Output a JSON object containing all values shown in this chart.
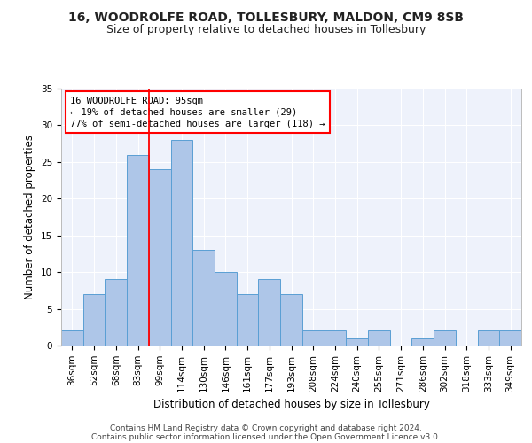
{
  "title_line1": "16, WOODROLFE ROAD, TOLLESBURY, MALDON, CM9 8SB",
  "title_line2": "Size of property relative to detached houses in Tollesbury",
  "xlabel": "Distribution of detached houses by size in Tollesbury",
  "ylabel": "Number of detached properties",
  "bar_labels": [
    "36sqm",
    "52sqm",
    "68sqm",
    "83sqm",
    "99sqm",
    "114sqm",
    "130sqm",
    "146sqm",
    "161sqm",
    "177sqm",
    "193sqm",
    "208sqm",
    "224sqm",
    "240sqm",
    "255sqm",
    "271sqm",
    "286sqm",
    "302sqm",
    "318sqm",
    "333sqm",
    "349sqm"
  ],
  "bar_values": [
    2,
    7,
    9,
    26,
    24,
    28,
    13,
    10,
    7,
    9,
    7,
    2,
    2,
    1,
    2,
    0,
    1,
    2,
    0,
    2,
    2
  ],
  "bar_color": "#aec6e8",
  "bar_edge_color": "#5a9fd4",
  "red_line_x": 4,
  "annotation_text": "16 WOODROLFE ROAD: 95sqm\n← 19% of detached houses are smaller (29)\n77% of semi-detached houses are larger (118) →",
  "ylim": [
    0,
    35
  ],
  "yticks": [
    0,
    5,
    10,
    15,
    20,
    25,
    30,
    35
  ],
  "footnote_line1": "Contains HM Land Registry data © Crown copyright and database right 2024.",
  "footnote_line2": "Contains public sector information licensed under the Open Government Licence v3.0.",
  "background_color": "#eef2fb",
  "grid_color": "#ffffff",
  "title_fontsize": 10,
  "subtitle_fontsize": 9,
  "axis_label_fontsize": 8.5,
  "tick_fontsize": 7.5,
  "annotation_fontsize": 7.5,
  "footnote_fontsize": 6.5
}
